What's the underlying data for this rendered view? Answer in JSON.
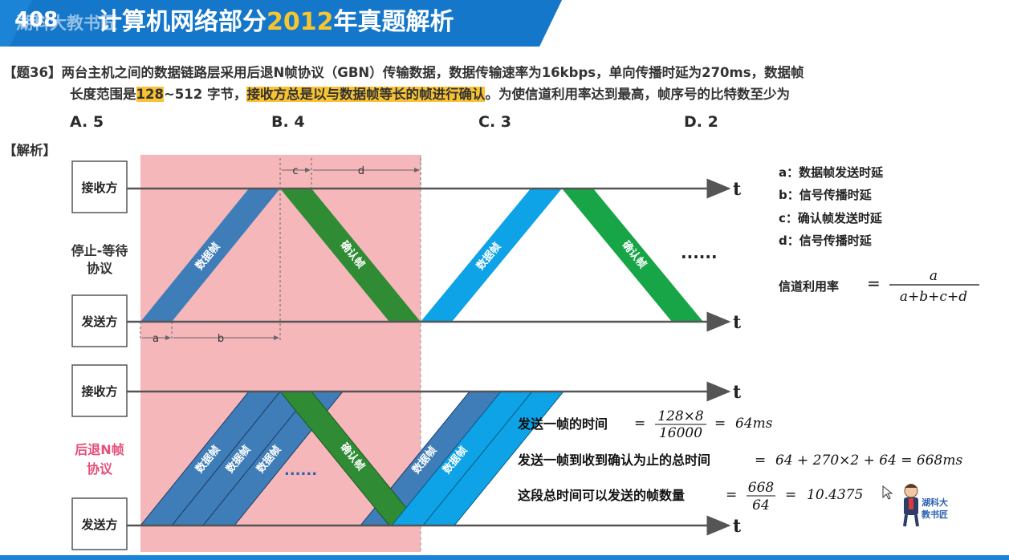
{
  "header": {
    "slide_number": "408",
    "title_prefix": "计算机网络部分",
    "title_year": "2012",
    "title_suffix": "年真题解析",
    "watermark": "湖科大教书匠"
  },
  "question": {
    "number": "【题36】",
    "line1": "两台主机之间的数据链路层采用后退N帧协议（GBN）传输数据，数据传输速率为16kbps，单向传播时延为270ms，数据帧",
    "line2_a": "长度范围是",
    "line2_hl1": "128",
    "line2_b": "~512 字节，",
    "line2_hl2": "接收方总是以与数据帧等长的帧进行确认",
    "line2_c": "。为使信道利用率达到最高，帧序号的比特数至少为",
    "options": [
      "A. 5",
      "B. 4",
      "C. 3",
      "D. 2"
    ]
  },
  "analysis_label": "【解析】",
  "diagram": {
    "receiver": "接收方",
    "sender": "发送方",
    "protocol_top": [
      "停止-等待",
      "协议"
    ],
    "protocol_bottom": [
      "后退N帧",
      "协议"
    ],
    "time_axis": "t",
    "data_frame": "数据帧",
    "ack_frame": "确认帧",
    "ellipsis": "......",
    "dots": "......",
    "dims": {
      "a": "a",
      "b": "b",
      "c": "c",
      "d": "d"
    },
    "colors": {
      "highlight_region": "#f6b7bb",
      "data_frame_dark": "#3f7db8",
      "data_frame_light": "#0ea2e6",
      "ack_frame": "#2f8c34",
      "ack_frame_light": "#17a548",
      "bottom_protocol_label": "#e4507a"
    }
  },
  "legend": {
    "a": "a：数据帧发送时延",
    "b": "b：信号传播时延",
    "c": "c：确认帧发送时延",
    "d": "d：信号传播时延",
    "utilization_label": "信道利用率",
    "utilization_numerator": "a",
    "utilization_denominator": "a+b+c+d"
  },
  "calculation": {
    "line1_label": "发送一帧的时间",
    "line1_num": "128×8",
    "line1_den": "16000",
    "line1_result": "64ms",
    "line2_label": "发送一帧到收到确认为止的总时间",
    "line2_expr": "64 + 270×2 + 64 = 668ms",
    "line3_label": "这段总时间可以发送的帧数量",
    "line3_num": "668",
    "line3_den": "64",
    "line3_result": "10.4375"
  },
  "logo": {
    "line1": "湖科大",
    "line2": "教书匠"
  }
}
